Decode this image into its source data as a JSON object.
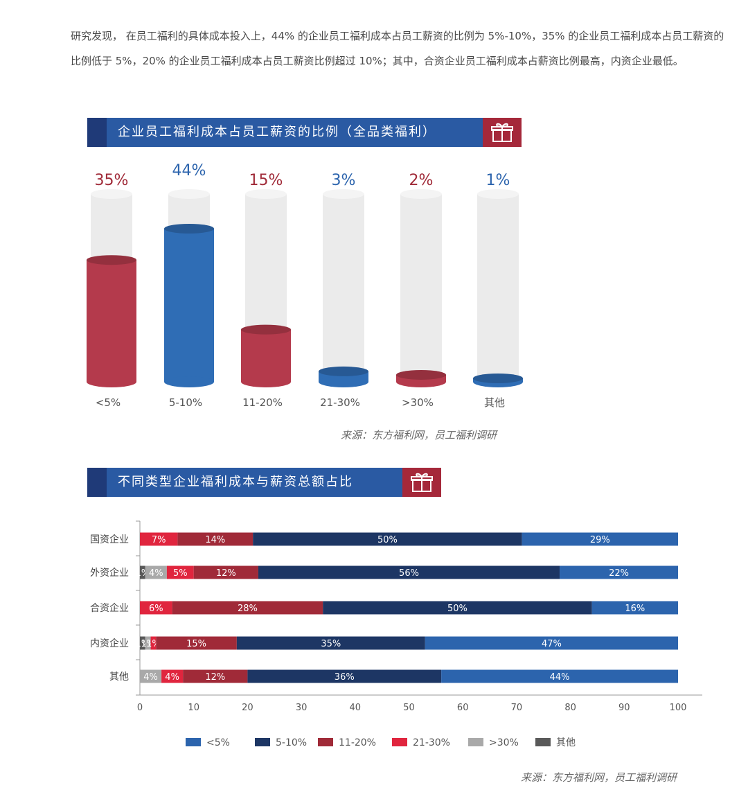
{
  "intro_text": "研究发现， 在员工福利的具体成本投入上，44% 的企业员工福利成本占员工薪资的比例为 5%-10%，35% 的企业员工福利成本占员工薪资的比例低于 5%，20% 的企业员工福利成本占员工薪资比例超过 10%；其中，合资企业员工福利成本占薪资比例最高，内资企业最低。",
  "colors": {
    "blue": "#2c64ad",
    "navy": "#1d3664",
    "dark_red": "#a02a38",
    "bright_red": "#e0253e",
    "light_gray": "#a9a9a9",
    "dark_gray": "#595959",
    "banner_blue": "#2a5aa3",
    "banner_red": "#a5283a",
    "cylinder_red": "#b43a4c",
    "cylinder_blue": "#2f6db5"
  },
  "chart_data": [
    {
      "type": "bar",
      "title": "企业员工福利成本占员工薪资的比例（全品类福利）",
      "categories": [
        "<5%",
        "5-10%",
        "11-20%",
        "21-30%",
        ">30%",
        "其他"
      ],
      "values": [
        35,
        44,
        15,
        3,
        2,
        1
      ],
      "value_labels": [
        "35%",
        "44%",
        "15%",
        "3%",
        "2%",
        "1%"
      ],
      "ylim": [
        0,
        50
      ],
      "source": "来源：东方福利网，员工福利调研"
    },
    {
      "type": "bar",
      "orientation": "horizontal",
      "stacked": true,
      "title": "不同类型企业福利成本与薪资总额占比",
      "categories": [
        "国资企业",
        "外资企业",
        "合资企业",
        "内资企业",
        "其他"
      ],
      "series": [
        {
          "name": "其他",
          "values": [
            0,
            1,
            0,
            1,
            0
          ],
          "labels": [
            "",
            "1%",
            "",
            "1%",
            ""
          ]
        },
        {
          "name": ">30%",
          "values": [
            0,
            4,
            0,
            1,
            4
          ],
          "labels": [
            "",
            "4%",
            "",
            "1%",
            "4%"
          ]
        },
        {
          "name": "21-30%",
          "values": [
            7,
            5,
            6,
            1,
            4
          ],
          "labels": [
            "7%",
            "5%",
            "6%",
            "1%",
            "4%"
          ]
        },
        {
          "name": "11-20%",
          "values": [
            14,
            12,
            28,
            15,
            12
          ],
          "labels": [
            "14%",
            "12%",
            "28%",
            "15%",
            "12%"
          ]
        },
        {
          "name": "5-10%",
          "values": [
            50,
            56,
            50,
            35,
            36
          ],
          "labels": [
            "50%",
            "56%",
            "50%",
            "35%",
            "36%"
          ]
        },
        {
          "name": "<5%",
          "values": [
            29,
            22,
            16,
            47,
            44
          ],
          "labels": [
            "29%",
            "22%",
            "16%",
            "47%",
            "44%"
          ]
        }
      ],
      "xticks": [
        "0",
        "10",
        "20",
        "30",
        "40",
        "50",
        "60",
        "70",
        "80",
        "90",
        "100"
      ],
      "xlim": [
        0,
        100
      ],
      "legend": [
        "<5%",
        "5-10%",
        "11-20%",
        "21-30%",
        ">30%",
        "其他"
      ],
      "legend_position": "bottom",
      "source": "来源：东方福利网，员工福利调研"
    }
  ]
}
